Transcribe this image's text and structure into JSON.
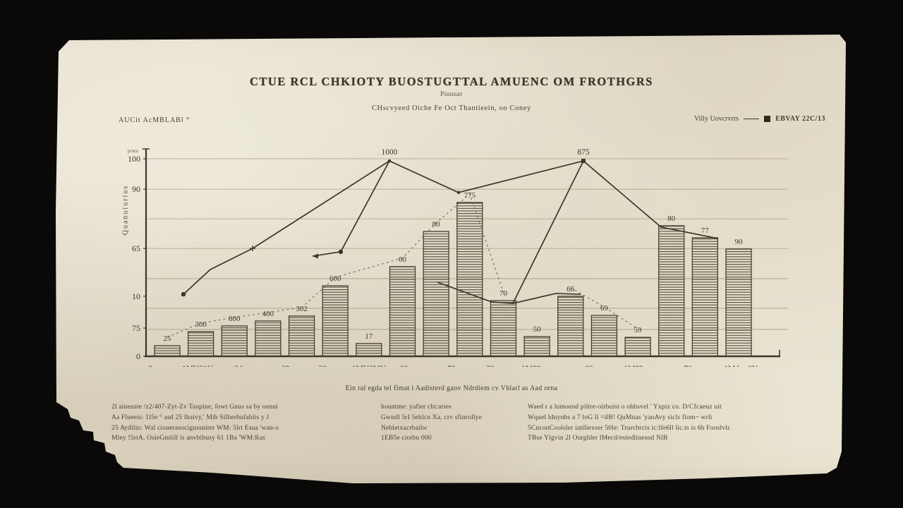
{
  "colors": {
    "paper": "#e9e3d1",
    "ink": "#3d362a",
    "grid": "#a09478",
    "background": "#0a0908"
  },
  "header": {
    "title": "CTUE RCL CHKIOTY BUOSTUGTTAL AMUENC OM FROTHGRS",
    "subtitle": "Pinnnar",
    "subtitle2": "CHscvyeed Oiche Fe Oct Thantieein, oo Coney",
    "corner_label": "AUCit AcMBLABl °",
    "legend": {
      "line_label": "Villy Uovcrvrrs",
      "square_label": "EBVAY 22C/13"
    }
  },
  "chart_data": {
    "type": "bar",
    "title": "CTUE RCL CHKIOTY BUOSTUGTTAL AMUENC OM FROTHGRS",
    "ylabel": "Quanuiurlus",
    "ylabel_sup": "p/ocs",
    "ylim": [
      0,
      105
    ],
    "grid": true,
    "y_ticks": [
      {
        "label": "100",
        "value": 100
      },
      {
        "label": "90",
        "value": 84.6
      },
      {
        "label": "65",
        "value": 54.6
      },
      {
        "label": "10",
        "value": 30.4
      },
      {
        "label": "75",
        "value": 14.3
      },
      {
        "label": "0",
        "value": 0
      }
    ],
    "gridlines": [
      100,
      84.6,
      69.6,
      54.6,
      39.3,
      24.3,
      13.6
    ],
    "x_ticks": [
      {
        "label": "2",
        "pos": 0.0067
      },
      {
        "label": "1MY21Y",
        "pos": 0.0813
      },
      {
        "label": "24",
        "pos": 0.1459
      },
      {
        "label": "39",
        "pos": 0.2205
      },
      {
        "label": "28",
        "pos": 0.2784
      },
      {
        "label": "1MY3MY",
        "pos": 0.3519
      },
      {
        "label": "29",
        "pos": 0.4076
      },
      {
        "label": "70",
        "pos": 0.4822
      },
      {
        "label": "29",
        "pos": 0.5434
      },
      {
        "label": "1M89",
        "pos": 0.608
      },
      {
        "label": "22",
        "pos": 0.6993
      },
      {
        "label": "1M89",
        "pos": 0.7695
      },
      {
        "label": "70",
        "pos": 0.8552
      },
      {
        "label": "1Mthm8Y",
        "pos": 0.9388
      }
    ],
    "bars": {
      "values": [
        5.4,
        12.5,
        15.4,
        17.9,
        20.4,
        35.7,
        6.5,
        45.4,
        63.2,
        77.9,
        28.2,
        10,
        30.4,
        20.7,
        9.6,
        66.1,
        60,
        54.3
      ],
      "labels": [
        "25",
        "300",
        "800",
        "400",
        "302",
        "600",
        "17",
        "60",
        "80",
        "775",
        "70",
        "50",
        "66",
        "69",
        "59",
        "80",
        "77",
        "90"
      ]
    },
    "lines": [
      {
        "name": "main-curve",
        "points": [
          [
            0.059,
            31.4
          ],
          [
            0.1013,
            43.9
          ],
          [
            0.1682,
            54.6
          ],
          [
            0.3842,
            98.9
          ],
          [
            0.4933,
            82.9
          ],
          [
            0.6904,
            98.9
          ],
          [
            0.8129,
            65.4
          ],
          [
            0.9031,
            59.6
          ]
        ]
      },
      {
        "name": "pointer-left",
        "points": [
          [
            0.2628,
            50.7
          ],
          [
            0.3073,
            52.9
          ],
          [
            0.3842,
            98.9
          ]
        ]
      },
      {
        "name": "valley-curve",
        "points": [
          [
            0.4599,
            37.5
          ],
          [
            0.5457,
            27.5
          ],
          [
            0.5791,
            26.8
          ],
          [
            0.647,
            31.8
          ],
          [
            0.686,
            31.4
          ]
        ]
      },
      {
        "name": "peak2-riser",
        "points": [
          [
            0.5791,
            26.8
          ],
          [
            0.6904,
            98.9
          ]
        ]
      }
    ],
    "line_labels": [
      {
        "text": "1000",
        "x": 0.3842,
        "v": 98.9
      },
      {
        "text": "875",
        "x": 0.6904,
        "v": 98.9
      }
    ],
    "markers": [
      {
        "x": 0.059,
        "v": 31.4,
        "type": "dot"
      },
      {
        "x": 0.1682,
        "v": 54.6,
        "type": "plus"
      },
      {
        "x": 0.3842,
        "v": 98.9,
        "type": "dot-small"
      },
      {
        "x": 0.4933,
        "v": 82.9,
        "type": "dot-small"
      },
      {
        "x": 0.6904,
        "v": 98.9,
        "type": "square"
      },
      {
        "x": 0.3073,
        "v": 52.9,
        "type": "dot"
      },
      {
        "x": 0.2628,
        "v": 50.7,
        "type": "arrow-left"
      }
    ],
    "leaders": [
      [
        0,
        1,
        2,
        3,
        4,
        5,
        7,
        8,
        9,
        10
      ],
      [
        12,
        13,
        14
      ]
    ]
  },
  "caption": "Ein ral egda tel fimat i Aadisterd gaov Ndrdiem cv Vhlarl as Aad orna",
  "footnotes": {
    "col1": [
      "2l ainesnte /z2/407-Zyt-Zv Taupine, fowt Gnus sa by oenni",
      "Aa Flueeis: 1l5e ° asd 25 lhaivy,' Mib Silberbufablis y J",
      "25 Aydilin: Wal ciouerasocigussniter WM: 5lrt Esua 'wan-o",
      "Mley !5rtA. OsieGmlill is anvbibusy 61 1Ba 'WM:Ras"
    ],
    "col2": [
      "hountme: yafier cht:aries",
      "Gwndl 5rI 5ehlcn Xa, crv sfinrollye",
      "Nebletxacrbailw",
      "1EB5e ciotbu 000"
    ],
    "col3": [
      "Waed r a lumoend piltre-oirbuist o ohbsvel ' Yxpiz co. D/Cfcaeuz uit",
      "Wquel ldnynbs a 7 loG ll =ilB! QuMnas 'yanAvy sicls fiom~ wrli",
      "5CnconCoolsler iatiliexser 50le: Trurcbrcis ic:lfe6ll lic.ts is 6b Fooslvlr.",
      "TBse Ylgvin 2l Ourghler lMecd/estedlinesnd NlB"
    ]
  }
}
